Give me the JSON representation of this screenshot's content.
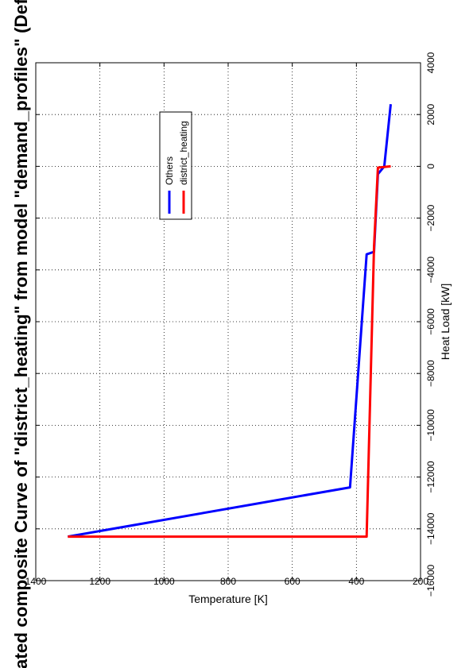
{
  "chart_data": {
    "type": "line",
    "title": "rated composite Curve of \"district_heating\" from model \"demand_profiles\" (DefaultHeatC",
    "xlabel": "Heat Load [kW]",
    "ylabel": "Temperature [K]",
    "xlim": [
      -16000,
      4000
    ],
    "ylim": [
      200,
      1400
    ],
    "x_ticks": [
      -16000,
      -14000,
      -12000,
      -10000,
      -8000,
      -6000,
      -4000,
      -2000,
      0,
      2000,
      4000
    ],
    "y_ticks": [
      200,
      400,
      600,
      800,
      1000,
      1200,
      1400
    ],
    "x_tick_labels": [
      "−16000",
      "−14000",
      "−12000",
      "−10000",
      "−8000",
      "−6000",
      "−4000",
      "−2000",
      "0",
      "2000",
      "4000"
    ],
    "y_tick_labels": [
      "200",
      "400",
      "600",
      "800",
      "1000",
      "1200",
      "1400"
    ],
    "grid": true,
    "legend_position": "top-right",
    "series": [
      {
        "name": "Others",
        "color": "#0000ff",
        "points": [
          [
            2400,
            293
          ],
          [
            0,
            313
          ],
          [
            -300,
            333
          ],
          [
            -3300,
            345
          ],
          [
            -3400,
            368
          ],
          [
            -12400,
            420
          ],
          [
            -14300,
            1300
          ]
        ]
      },
      {
        "name": "district_heating",
        "color": "#ff0000",
        "points": [
          [
            0,
            293
          ],
          [
            -50,
            333
          ],
          [
            -3100,
            345
          ],
          [
            -14300,
            368
          ],
          [
            -14300,
            1300
          ]
        ]
      }
    ]
  }
}
